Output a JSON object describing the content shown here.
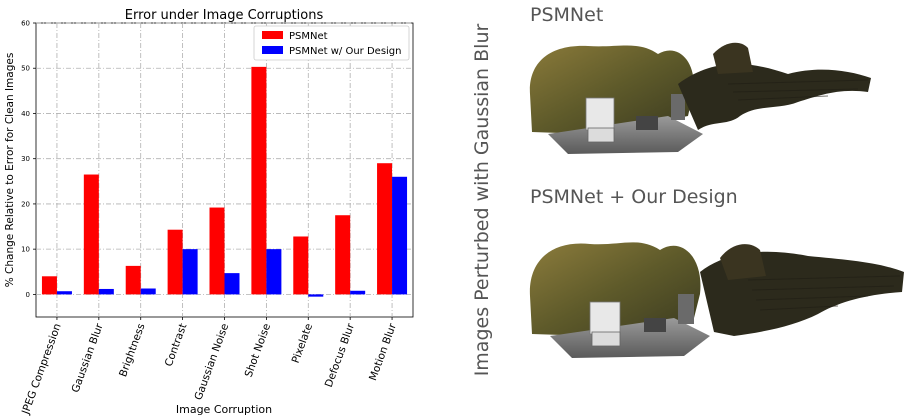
{
  "chart_data": {
    "type": "bar",
    "title": "Error under Image Corruptions",
    "xlabel": "Image Corruption",
    "ylabel": "% Change Relative to Error for Clean Images",
    "ylim": [
      -5,
      60
    ],
    "yticks": [
      0,
      10,
      20,
      30,
      40,
      50,
      60
    ],
    "grid": true,
    "legend_position": "top-right",
    "categories": [
      "JPEG Compression",
      "Gaussian Blur",
      "Brightness",
      "Contrast",
      "Gaussian Noise",
      "Shot Noise",
      "Pixelate",
      "Defocus Blur",
      "Motion Blur"
    ],
    "series": [
      {
        "name": "PSMNet",
        "color": "#ff0000",
        "values": [
          4.0,
          26.5,
          6.3,
          14.3,
          19.2,
          50.3,
          12.8,
          17.5,
          29.0
        ]
      },
      {
        "name": "PSMNet w/ Our Design",
        "color": "#0000ff",
        "values": [
          0.7,
          1.2,
          1.3,
          10.0,
          4.7,
          10.0,
          -0.5,
          0.8,
          26.0
        ]
      }
    ]
  },
  "figure": {
    "side_label": "Images Perturbed with Gaussian Blur",
    "top_panel_title": "PSMNet",
    "bottom_panel_title": "PSMNet + Our Design"
  }
}
